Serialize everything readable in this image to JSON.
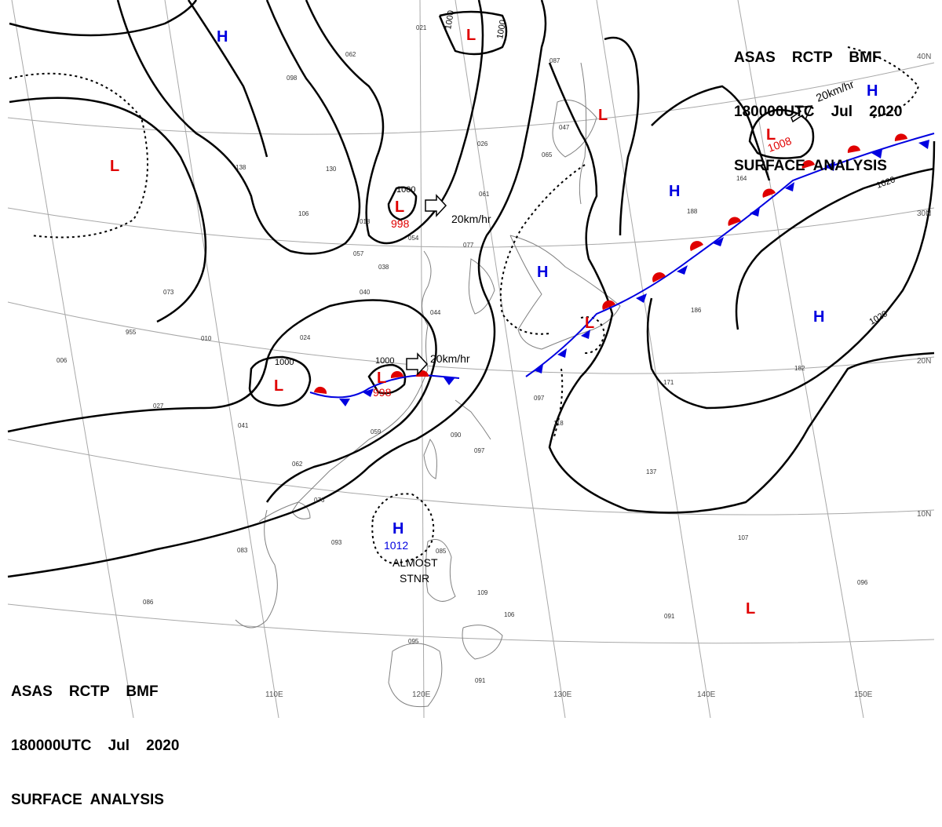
{
  "header_top": {
    "line1": "ASAS    RCTP    BMF",
    "line2": "180000UTC    Jul    2020",
    "line3": "SURFACE  ANALYSIS"
  },
  "header_bottom": {
    "line1": "ASAS    RCTP    BMF",
    "line2": "180000UTC    Jul    2020",
    "line3": "SURFACE  ANALYSIS"
  },
  "longitude_labels": [
    "110E",
    "120E",
    "130E",
    "140E",
    "150E"
  ],
  "latitude_labels": [
    "40N",
    "30N",
    "20N",
    "10N"
  ],
  "isobar_labels": [
    "1000",
    "1000",
    "1000",
    "1000",
    "1000",
    "1020",
    "1020"
  ],
  "pressure_centers": [
    {
      "type": "L",
      "value": ""
    },
    {
      "type": "L",
      "value": "998"
    },
    {
      "type": "L",
      "value": "998"
    },
    {
      "type": "L",
      "value": ""
    },
    {
      "type": "L",
      "value": ""
    },
    {
      "type": "L",
      "value": ""
    },
    {
      "type": "L",
      "value": "1008"
    },
    {
      "type": "L",
      "value": ""
    },
    {
      "type": "H",
      "value": ""
    },
    {
      "type": "H",
      "value": ""
    },
    {
      "type": "H",
      "value": ""
    },
    {
      "type": "H",
      "value": ""
    },
    {
      "type": "H",
      "value": ""
    },
    {
      "type": "H",
      "value": "1012"
    }
  ],
  "motion_labels": [
    "20km/hr",
    "20km/hr",
    "20km/hr"
  ],
  "annotations": {
    "almost": "ALMOST",
    "stnr": "STNR"
  },
  "station_samples": [
    "021",
    "062",
    "098",
    "054",
    "130",
    "138",
    "106",
    "018",
    "057",
    "038",
    "040",
    "044",
    "024",
    "010",
    "955",
    "006",
    "027",
    "041",
    "059",
    "090",
    "097",
    "062",
    "076",
    "093",
    "083",
    "086",
    "095",
    "085",
    "109",
    "106",
    "091",
    "097",
    "118",
    "137",
    "171",
    "182",
    "186",
    "188",
    "164",
    "107",
    "096",
    "091",
    "087",
    "026",
    "061",
    "077",
    "065",
    "047",
    "073"
  ],
  "colors": {
    "warm_front": "#e00000",
    "cold_front": "#0000e0",
    "low": "#e00000",
    "high": "#0000e0",
    "isobar": "#000000"
  },
  "front_types": [
    "stationary",
    "stationary",
    "cold"
  ]
}
